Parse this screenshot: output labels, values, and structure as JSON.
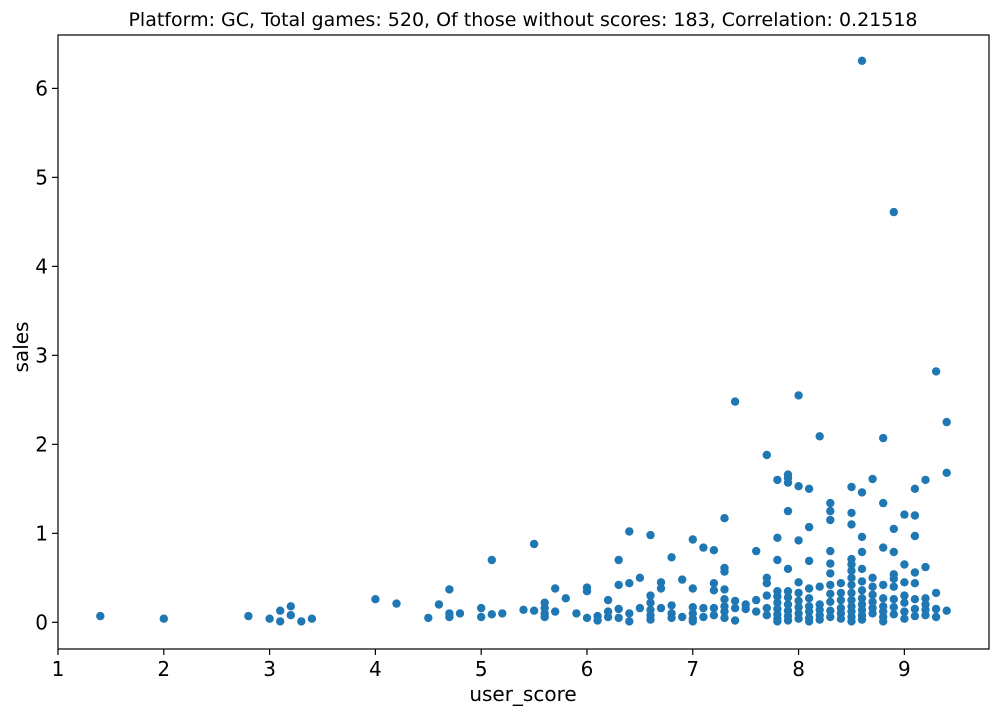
{
  "chart_data": {
    "type": "scatter",
    "title": "Platform: GC, Total games: 520, Of those without scores: 183, Correlation: 0.21518",
    "xlabel": "user_score",
    "ylabel": "sales",
    "xlim": [
      1.0,
      9.8
    ],
    "ylim": [
      -0.3,
      6.6
    ],
    "xticks": [
      1,
      2,
      3,
      4,
      5,
      6,
      7,
      8,
      9
    ],
    "yticks": [
      0,
      1,
      2,
      3,
      4,
      5,
      6
    ],
    "grid": false,
    "legend": "none",
    "marker_color": "#1f77b4",
    "points": [
      [
        1.4,
        0.07
      ],
      [
        2.0,
        0.04
      ],
      [
        2.8,
        0.07
      ],
      [
        3.0,
        0.04
      ],
      [
        3.1,
        0.01
      ],
      [
        3.1,
        0.13
      ],
      [
        3.2,
        0.08
      ],
      [
        3.2,
        0.18
      ],
      [
        3.3,
        0.01
      ],
      [
        3.4,
        0.04
      ],
      [
        4.0,
        0.26
      ],
      [
        4.2,
        0.21
      ],
      [
        4.5,
        0.05
      ],
      [
        4.6,
        0.2
      ],
      [
        4.7,
        0.37
      ],
      [
        4.7,
        0.1
      ],
      [
        4.7,
        0.06
      ],
      [
        4.8,
        0.1
      ],
      [
        5.0,
        0.16
      ],
      [
        5.0,
        0.06
      ],
      [
        5.1,
        0.7
      ],
      [
        5.1,
        0.09
      ],
      [
        5.2,
        0.1
      ],
      [
        5.4,
        0.14
      ],
      [
        5.5,
        0.88
      ],
      [
        5.5,
        0.13
      ],
      [
        5.6,
        0.22
      ],
      [
        5.6,
        0.16
      ],
      [
        5.6,
        0.1
      ],
      [
        5.6,
        0.06
      ],
      [
        5.7,
        0.38
      ],
      [
        5.7,
        0.12
      ],
      [
        5.8,
        0.27
      ],
      [
        5.9,
        0.1
      ],
      [
        6.0,
        0.39
      ],
      [
        6.0,
        0.35
      ],
      [
        6.0,
        0.05
      ],
      [
        6.1,
        0.07
      ],
      [
        6.1,
        0.02
      ],
      [
        6.2,
        0.25
      ],
      [
        6.2,
        0.12
      ],
      [
        6.2,
        0.06
      ],
      [
        6.3,
        0.7
      ],
      [
        6.3,
        0.42
      ],
      [
        6.3,
        0.15
      ],
      [
        6.3,
        0.05
      ],
      [
        6.4,
        1.02
      ],
      [
        6.4,
        0.44
      ],
      [
        6.4,
        0.1
      ],
      [
        6.4,
        0.01
      ],
      [
        6.5,
        0.5
      ],
      [
        6.5,
        0.16
      ],
      [
        6.6,
        0.98
      ],
      [
        6.6,
        0.3
      ],
      [
        6.6,
        0.22
      ],
      [
        6.6,
        0.14
      ],
      [
        6.6,
        0.08
      ],
      [
        6.6,
        0.03
      ],
      [
        6.7,
        0.45
      ],
      [
        6.7,
        0.38
      ],
      [
        6.7,
        0.16
      ],
      [
        6.8,
        0.73
      ],
      [
        6.8,
        0.19
      ],
      [
        6.8,
        0.1
      ],
      [
        6.8,
        0.05
      ],
      [
        6.9,
        0.48
      ],
      [
        6.9,
        0.06
      ],
      [
        7.0,
        0.93
      ],
      [
        7.0,
        0.38
      ],
      [
        7.0,
        0.17
      ],
      [
        7.0,
        0.1
      ],
      [
        7.0,
        0.04
      ],
      [
        7.0,
        0.01
      ],
      [
        7.1,
        0.84
      ],
      [
        7.1,
        0.16
      ],
      [
        7.1,
        0.06
      ],
      [
        7.2,
        0.81
      ],
      [
        7.2,
        0.44
      ],
      [
        7.2,
        0.36
      ],
      [
        7.2,
        0.16
      ],
      [
        7.2,
        0.08
      ],
      [
        7.3,
        1.17
      ],
      [
        7.3,
        0.61
      ],
      [
        7.3,
        0.57
      ],
      [
        7.3,
        0.37
      ],
      [
        7.3,
        0.26
      ],
      [
        7.3,
        0.18
      ],
      [
        7.3,
        0.12
      ],
      [
        7.3,
        0.05
      ],
      [
        7.4,
        2.48
      ],
      [
        7.4,
        0.24
      ],
      [
        7.4,
        0.16
      ],
      [
        7.4,
        0.02
      ],
      [
        7.5,
        0.2
      ],
      [
        7.5,
        0.15
      ],
      [
        7.6,
        0.8
      ],
      [
        7.6,
        0.25
      ],
      [
        7.6,
        0.12
      ],
      [
        7.7,
        1.88
      ],
      [
        7.7,
        0.5
      ],
      [
        7.7,
        0.44
      ],
      [
        7.7,
        0.3
      ],
      [
        7.7,
        0.16
      ],
      [
        7.7,
        0.08
      ],
      [
        7.8,
        1.6
      ],
      [
        7.8,
        0.95
      ],
      [
        7.8,
        0.7
      ],
      [
        7.8,
        0.35
      ],
      [
        7.8,
        0.29
      ],
      [
        7.8,
        0.22
      ],
      [
        7.8,
        0.15
      ],
      [
        7.8,
        0.09
      ],
      [
        7.8,
        0.04
      ],
      [
        7.8,
        0.01
      ],
      [
        7.9,
        1.66
      ],
      [
        7.9,
        1.62
      ],
      [
        7.9,
        1.57
      ],
      [
        7.9,
        1.25
      ],
      [
        7.9,
        0.6
      ],
      [
        7.9,
        0.35
      ],
      [
        7.9,
        0.28
      ],
      [
        7.9,
        0.2
      ],
      [
        7.9,
        0.13
      ],
      [
        7.9,
        0.07
      ],
      [
        7.9,
        0.02
      ],
      [
        8.0,
        2.55
      ],
      [
        8.0,
        1.53
      ],
      [
        8.0,
        0.92
      ],
      [
        8.0,
        0.45
      ],
      [
        8.0,
        0.33
      ],
      [
        8.0,
        0.24
      ],
      [
        8.0,
        0.17
      ],
      [
        8.0,
        0.1
      ],
      [
        8.0,
        0.04
      ],
      [
        8.1,
        1.5
      ],
      [
        8.1,
        1.07
      ],
      [
        8.1,
        0.69
      ],
      [
        8.1,
        0.38
      ],
      [
        8.1,
        0.27
      ],
      [
        8.1,
        0.18
      ],
      [
        8.1,
        0.12
      ],
      [
        8.1,
        0.05
      ],
      [
        8.1,
        0.01
      ],
      [
        8.2,
        2.09
      ],
      [
        8.2,
        0.4
      ],
      [
        8.2,
        0.2
      ],
      [
        8.2,
        0.14
      ],
      [
        8.2,
        0.08
      ],
      [
        8.2,
        0.03
      ],
      [
        8.3,
        1.34
      ],
      [
        8.3,
        1.25
      ],
      [
        8.3,
        1.15
      ],
      [
        8.3,
        0.8
      ],
      [
        8.3,
        0.66
      ],
      [
        8.3,
        0.55
      ],
      [
        8.3,
        0.42
      ],
      [
        8.3,
        0.32
      ],
      [
        8.3,
        0.23
      ],
      [
        8.3,
        0.13
      ],
      [
        8.3,
        0.06
      ],
      [
        8.4,
        0.44
      ],
      [
        8.4,
        0.33
      ],
      [
        8.4,
        0.25
      ],
      [
        8.4,
        0.16
      ],
      [
        8.4,
        0.1
      ],
      [
        8.4,
        0.04
      ],
      [
        8.5,
        1.52
      ],
      [
        8.5,
        1.23
      ],
      [
        8.5,
        1.1
      ],
      [
        8.5,
        0.71
      ],
      [
        8.5,
        0.65
      ],
      [
        8.5,
        0.58
      ],
      [
        8.5,
        0.5
      ],
      [
        8.5,
        0.42
      ],
      [
        8.5,
        0.33
      ],
      [
        8.5,
        0.25
      ],
      [
        8.5,
        0.18
      ],
      [
        8.5,
        0.12
      ],
      [
        8.5,
        0.06
      ],
      [
        8.5,
        0.01
      ],
      [
        8.6,
        6.31
      ],
      [
        8.6,
        1.46
      ],
      [
        8.6,
        0.96
      ],
      [
        8.6,
        0.79
      ],
      [
        8.6,
        0.6
      ],
      [
        8.6,
        0.46
      ],
      [
        8.6,
        0.36
      ],
      [
        8.6,
        0.27
      ],
      [
        8.6,
        0.2
      ],
      [
        8.6,
        0.14
      ],
      [
        8.6,
        0.08
      ],
      [
        8.6,
        0.03
      ],
      [
        8.7,
        1.61
      ],
      [
        8.7,
        0.5
      ],
      [
        8.7,
        0.4
      ],
      [
        8.7,
        0.31
      ],
      [
        8.7,
        0.23
      ],
      [
        8.7,
        0.16
      ],
      [
        8.7,
        0.1
      ],
      [
        8.8,
        2.07
      ],
      [
        8.8,
        1.34
      ],
      [
        8.8,
        0.84
      ],
      [
        8.8,
        0.42
      ],
      [
        8.8,
        0.27
      ],
      [
        8.8,
        0.18
      ],
      [
        8.8,
        0.12
      ],
      [
        8.8,
        0.06
      ],
      [
        8.8,
        0.01
      ],
      [
        8.9,
        4.61
      ],
      [
        8.9,
        1.05
      ],
      [
        8.9,
        0.79
      ],
      [
        8.9,
        0.54
      ],
      [
        8.9,
        0.49
      ],
      [
        8.9,
        0.4
      ],
      [
        8.9,
        0.26
      ],
      [
        8.9,
        0.17
      ],
      [
        8.9,
        0.09
      ],
      [
        9.0,
        1.21
      ],
      [
        9.0,
        0.65
      ],
      [
        9.0,
        0.45
      ],
      [
        9.0,
        0.3
      ],
      [
        9.0,
        0.22
      ],
      [
        9.0,
        0.12
      ],
      [
        9.0,
        0.04
      ],
      [
        9.1,
        1.5
      ],
      [
        9.1,
        1.2
      ],
      [
        9.1,
        0.97
      ],
      [
        9.1,
        0.56
      ],
      [
        9.1,
        0.44
      ],
      [
        9.1,
        0.26
      ],
      [
        9.1,
        0.15
      ],
      [
        9.1,
        0.07
      ],
      [
        9.2,
        1.6
      ],
      [
        9.2,
        0.62
      ],
      [
        9.2,
        0.27
      ],
      [
        9.2,
        0.2
      ],
      [
        9.2,
        0.14
      ],
      [
        9.2,
        0.08
      ],
      [
        9.3,
        2.82
      ],
      [
        9.3,
        0.33
      ],
      [
        9.3,
        0.15
      ],
      [
        9.3,
        0.06
      ],
      [
        9.4,
        2.25
      ],
      [
        9.4,
        1.68
      ],
      [
        9.4,
        0.13
      ]
    ]
  }
}
